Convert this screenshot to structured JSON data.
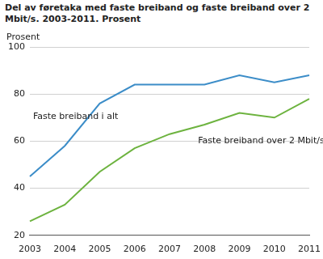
{
  "chart_data": {
    "type": "line",
    "title": "Del av føretaka med faste breiband og faste breiband over 2 Mbit/s. 2003-2011. Prosent",
    "y_label": "Prosent",
    "categories": [
      "2003",
      "2004",
      "2005",
      "2006",
      "2007",
      "2008",
      "2009",
      "2010",
      "2011"
    ],
    "series": [
      {
        "name": "Faste breiband i alt",
        "color": "#3c8dc8",
        "values": [
          45,
          58,
          76,
          84,
          84,
          84,
          88,
          85,
          88
        ]
      },
      {
        "name": "Faste breiband over 2 Mbit/s",
        "color": "#6db33f",
        "values": [
          26,
          33,
          47,
          57,
          63,
          67,
          72,
          70,
          78
        ]
      }
    ],
    "ylim": [
      20,
      100
    ],
    "yticks": [
      20,
      40,
      60,
      80,
      100
    ],
    "grid": true
  }
}
